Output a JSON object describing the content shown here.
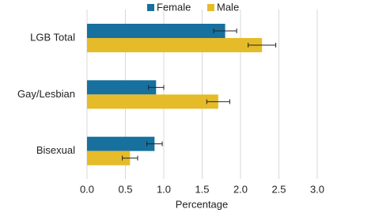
{
  "chart_data": {
    "type": "hbar",
    "categories": [
      "LGB Total",
      "Gay/Lesbian",
      "Bisexual"
    ],
    "series": [
      {
        "name": "Female",
        "color": "#17709e",
        "values": [
          1.8,
          0.9,
          0.88
        ],
        "errors": [
          0.15,
          0.1,
          0.1
        ]
      },
      {
        "name": "Male",
        "color": "#e5bb2a",
        "values": [
          2.28,
          1.71,
          0.56
        ],
        "errors": [
          0.18,
          0.15,
          0.1
        ]
      }
    ],
    "xlabel": "Percentage",
    "xlim": [
      0,
      3
    ],
    "xticks": [
      {
        "value": 0,
        "label": "0.0"
      },
      {
        "value": 0.5,
        "label": "0.5"
      },
      {
        "value": 1,
        "label": "1.0"
      },
      {
        "value": 1.5,
        "label": "1.5"
      },
      {
        "value": 2,
        "label": "2.0"
      },
      {
        "value": 2.5,
        "label": "2.5"
      },
      {
        "value": 3,
        "label": "3.0"
      }
    ],
    "grid": true,
    "legend": "top"
  }
}
